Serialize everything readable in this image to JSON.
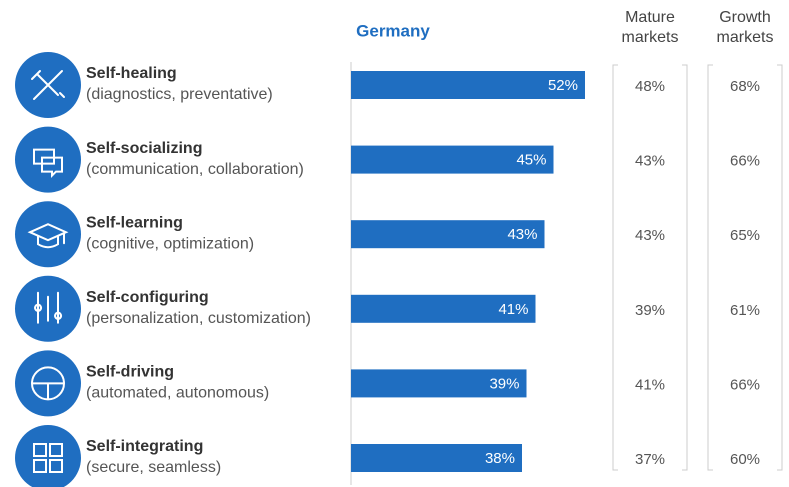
{
  "chart_data": {
    "type": "bar",
    "orientation": "horizontal",
    "categories": [
      "Self-healing",
      "Self-socializing",
      "Self-learning",
      "Self-configuring",
      "Self-driving",
      "Self-integrating"
    ],
    "category_descriptions": [
      "(diagnostics, preventative)",
      "(communication, collaboration)",
      "(cognitive, optimization)",
      "(personalization, customization)",
      "(automated, autonomous)",
      "(secure, seamless)"
    ],
    "series": [
      {
        "name": "Germany",
        "color": "#1f6ec1",
        "values": [
          52,
          45,
          43,
          41,
          39,
          38
        ],
        "value_labels": [
          "52%",
          "45%",
          "43%",
          "41%",
          "39%",
          "38%"
        ]
      }
    ],
    "columns": [
      {
        "name": "Mature markets",
        "values": [
          48,
          43,
          43,
          39,
          41,
          37
        ],
        "value_labels": [
          "48%",
          "43%",
          "43%",
          "39%",
          "41%",
          "37%"
        ]
      },
      {
        "name": "Growth markets",
        "values": [
          68,
          66,
          65,
          61,
          66,
          60
        ],
        "value_labels": [
          "68%",
          "66%",
          "65%",
          "61%",
          "66%",
          "60%"
        ]
      }
    ]
  }
}
